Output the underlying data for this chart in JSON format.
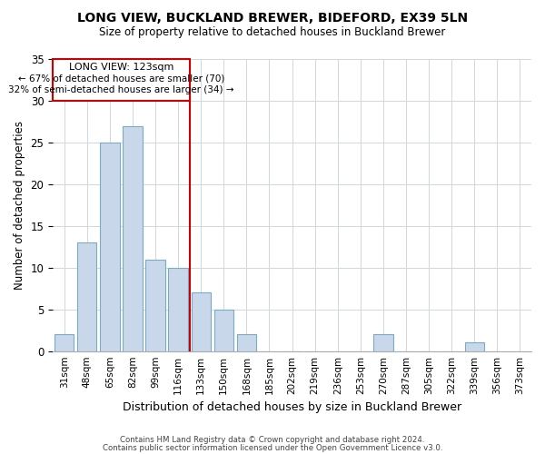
{
  "title1": "LONG VIEW, BUCKLAND BREWER, BIDEFORD, EX39 5LN",
  "title2": "Size of property relative to detached houses in Buckland Brewer",
  "xlabel": "Distribution of detached houses by size in Buckland Brewer",
  "ylabel": "Number of detached properties",
  "footer1": "Contains HM Land Registry data © Crown copyright and database right 2024.",
  "footer2": "Contains public sector information licensed under the Open Government Licence v3.0.",
  "bar_labels": [
    "31sqm",
    "48sqm",
    "65sqm",
    "82sqm",
    "99sqm",
    "116sqm",
    "133sqm",
    "150sqm",
    "168sqm",
    "185sqm",
    "202sqm",
    "219sqm",
    "236sqm",
    "253sqm",
    "270sqm",
    "287sqm",
    "305sqm",
    "322sqm",
    "339sqm",
    "356sqm",
    "373sqm"
  ],
  "bar_values": [
    2,
    13,
    25,
    27,
    11,
    10,
    7,
    5,
    2,
    0,
    0,
    0,
    0,
    0,
    2,
    0,
    0,
    0,
    1,
    0,
    0
  ],
  "bar_color": "#c8d8ea",
  "bar_edge_color": "#7aaac8",
  "annotation_title": "LONG VIEW: 123sqm",
  "annotation_line1": "← 67% of detached houses are smaller (70)",
  "annotation_line2": "32% of semi-detached houses are larger (34) →",
  "annotation_box_color": "#ffffff",
  "annotation_box_edge_color": "#cc0000",
  "reference_line_color": "#cc0000",
  "ylim": [
    0,
    35
  ],
  "yticks": [
    0,
    5,
    10,
    15,
    20,
    25,
    30,
    35
  ],
  "background_color": "#ffffff",
  "grid_color": "#d0d8e0"
}
